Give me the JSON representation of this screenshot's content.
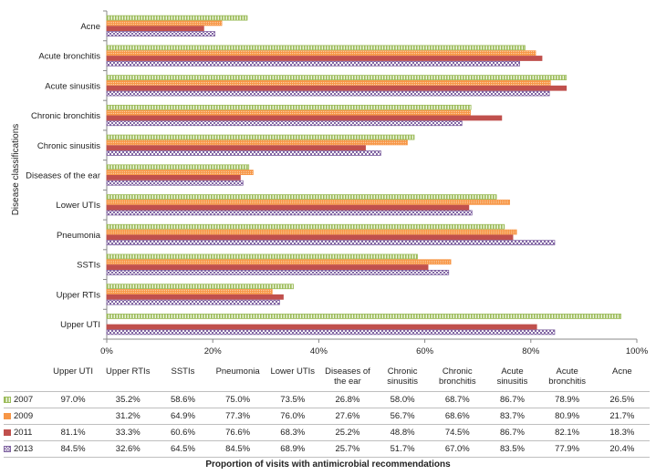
{
  "chart_data": {
    "type": "bar",
    "orientation": "horizontal",
    "title": "",
    "xlabel": "Proportion of visits with antimicrobial recommendations",
    "ylabel": "Disease classifications",
    "xlim": [
      0,
      100
    ],
    "x_ticks": [
      0,
      20,
      40,
      60,
      80,
      100
    ],
    "x_tick_labels": [
      "0%",
      "20%",
      "40%",
      "60%",
      "80%",
      "100%"
    ],
    "grid": false,
    "categories": [
      "Upper UTI",
      "Upper RTIs",
      "SSTIs",
      "Pneumonia",
      "Lower UTIs",
      "Diseases of the ear",
      "Chronic sinusitis",
      "Chronic bronchitis",
      "Acute sinusitis",
      "Acute bronchitis",
      "Acne"
    ],
    "table_headers": [
      "Upper UTI",
      "Upper RTIs",
      "SSTIs",
      "Pneumonia",
      "Lower UTIs",
      "Diseases of\nthe ear",
      "Chronic\nsinusitis",
      "Chronic\nbronchitis",
      "Acute\nsinusitis",
      "Acute\nbronchitis",
      "Acne"
    ],
    "series": [
      {
        "name": "2007",
        "color": "#9bbb59",
        "pattern": "vstripe",
        "values": [
          97.0,
          35.2,
          58.6,
          75.0,
          73.5,
          26.8,
          58.0,
          68.7,
          86.7,
          78.9,
          26.5
        ],
        "labels": [
          "97.0%",
          "35.2%",
          "58.6%",
          "75.0%",
          "73.5%",
          "26.8%",
          "58.0%",
          "68.7%",
          "86.7%",
          "78.9%",
          "26.5%"
        ]
      },
      {
        "name": "2009",
        "color": "#f79646",
        "pattern": "dots",
        "values": [
          null,
          31.2,
          64.9,
          77.3,
          76.0,
          27.6,
          56.7,
          68.6,
          83.7,
          80.9,
          21.7
        ],
        "labels": [
          "",
          "31.2%",
          "64.9%",
          "77.3%",
          "76.0%",
          "27.6%",
          "56.7%",
          "68.6%",
          "83.7%",
          "80.9%",
          "21.7%"
        ]
      },
      {
        "name": "2011",
        "color": "#c0504d",
        "pattern": "solid",
        "values": [
          81.1,
          33.3,
          60.6,
          76.6,
          68.3,
          25.2,
          48.8,
          74.5,
          86.7,
          82.1,
          18.3
        ],
        "labels": [
          "81.1%",
          "33.3%",
          "60.6%",
          "76.6%",
          "68.3%",
          "25.2%",
          "48.8%",
          "74.5%",
          "86.7%",
          "82.1%",
          "18.3%"
        ]
      },
      {
        "name": "2013",
        "color": "#8064a2",
        "pattern": "checker",
        "values": [
          84.5,
          32.6,
          64.5,
          84.5,
          68.9,
          25.7,
          51.7,
          67.0,
          83.5,
          77.9,
          20.4
        ],
        "labels": [
          "84.5%",
          "32.6%",
          "64.5%",
          "84.5%",
          "68.9%",
          "25.7%",
          "51.7%",
          "67.0%",
          "83.5%",
          "77.9%",
          "20.4%"
        ]
      }
    ]
  }
}
